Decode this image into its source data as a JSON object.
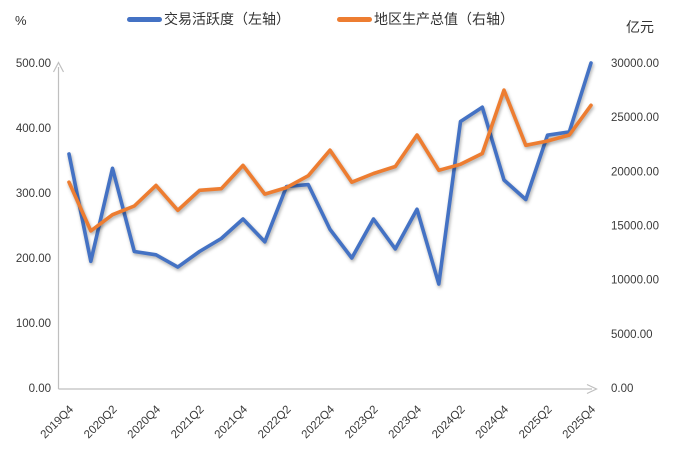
{
  "chart_data": {
    "type": "line",
    "title": "",
    "categories": [
      "2019Q4",
      "2020Q1",
      "2020Q2",
      "2020Q3",
      "2020Q4",
      "2021Q1",
      "2021Q2",
      "2021Q3",
      "2021Q4",
      "2022Q1",
      "2022Q2",
      "2022Q3",
      "2022Q4",
      "2023Q1",
      "2023Q2",
      "2023Q3",
      "2023Q4",
      "2024Q1",
      "2024Q2",
      "2024Q3",
      "2024Q4",
      "2025Q1",
      "2025Q2",
      "2025Q3",
      "2025Q4"
    ],
    "x_tick_labels": [
      "2019Q4",
      "2020Q2",
      "2020Q4",
      "2021Q2",
      "2021Q4",
      "2022Q2",
      "2022Q4",
      "2023Q2",
      "2023Q4",
      "2024Q2",
      "2024Q4",
      "2025Q2",
      "2025Q4"
    ],
    "series": [
      {
        "name": "交易活跃度（左轴）",
        "axis": "left",
        "color": "#4472C4",
        "values": [
          360,
          195,
          338,
          210,
          205,
          186,
          210,
          230,
          260,
          225,
          310,
          313,
          244,
          200,
          260,
          214,
          275,
          160,
          410,
          432,
          320,
          290,
          389,
          394,
          500
        ]
      },
      {
        "name": "地区生产总值（右轴）",
        "axis": "right",
        "color": "#ED7D31",
        "values": [
          19000,
          14500,
          16000,
          16800,
          18700,
          16400,
          18250,
          18400,
          20550,
          17900,
          18500,
          19600,
          21950,
          19000,
          19800,
          20450,
          23350,
          20100,
          20650,
          21650,
          27500,
          22400,
          22800,
          23350,
          26100
        ]
      }
    ],
    "left_axis": {
      "unit": "%",
      "min": 0,
      "max": 500,
      "tick_labels": [
        "0.00",
        "100.00",
        "200.00",
        "300.00",
        "400.00",
        "500.00"
      ]
    },
    "right_axis": {
      "unit": "亿元",
      "min": 0,
      "max": 30000,
      "tick_labels": [
        "0.00",
        "5000.00",
        "10000.00",
        "15000.00",
        "20000.00",
        "25000.00",
        "30000.00"
      ]
    },
    "legend_position": "top",
    "grid": false,
    "axis_color": "#BFBFBF"
  }
}
